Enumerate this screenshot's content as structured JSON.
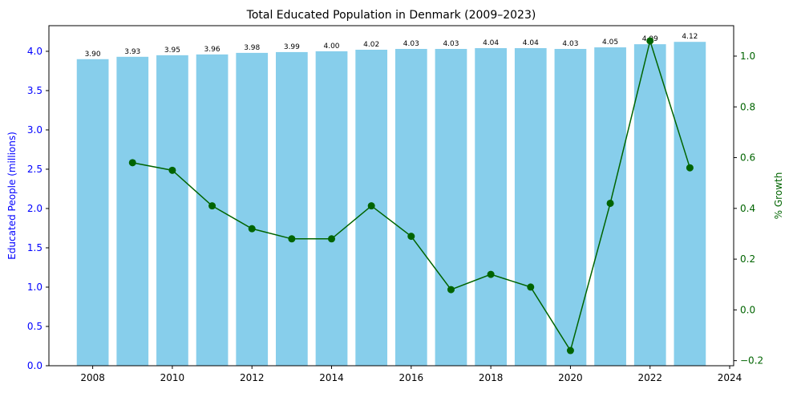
{
  "chart_data": {
    "type": "bar",
    "title": "Total Educated Population in Denmark (2009–2023)",
    "x": [
      2008,
      2009,
      2010,
      2011,
      2012,
      2013,
      2014,
      2015,
      2016,
      2017,
      2018,
      2019,
      2020,
      2021,
      2022,
      2023
    ],
    "series": [
      {
        "name": "Educated People (millions)",
        "type": "bar",
        "axis": "left",
        "color": "#87ceeb",
        "values": [
          3.9,
          3.93,
          3.95,
          3.96,
          3.98,
          3.99,
          4.0,
          4.02,
          4.03,
          4.03,
          4.04,
          4.04,
          4.03,
          4.05,
          4.09,
          4.12
        ],
        "labels": [
          "3.90",
          "3.93",
          "3.95",
          "3.96",
          "3.98",
          "3.99",
          "4.00",
          "4.02",
          "4.03",
          "4.03",
          "4.04",
          "4.04",
          "4.03",
          "4.05",
          "4.09",
          "4.12"
        ]
      },
      {
        "name": "% Growth",
        "type": "line",
        "axis": "right",
        "color": "#006400",
        "values": [
          null,
          0.58,
          0.55,
          0.41,
          0.32,
          0.28,
          0.28,
          0.41,
          0.29,
          0.08,
          0.14,
          0.09,
          -0.16,
          0.42,
          1.06,
          0.56
        ]
      }
    ],
    "xlim": [
      2006.9,
      2024.1
    ],
    "ylim_left": [
      0,
      4.326
    ],
    "ylim_right": [
      -0.22,
      1.12
    ],
    "xticks": [
      "2008",
      "2010",
      "2012",
      "2014",
      "2016",
      "2018",
      "2020",
      "2022",
      "2024"
    ],
    "yticks_left": [
      "0.0",
      "0.5",
      "1.0",
      "1.5",
      "2.0",
      "2.5",
      "3.0",
      "3.5",
      "4.0"
    ],
    "yticks_right": [
      "−0.2",
      "0.0",
      "0.2",
      "0.4",
      "0.6",
      "0.8",
      "1.0"
    ],
    "ylabel_left": "Educated People (millions)",
    "ylabel_right": "% Growth",
    "left_axis_color": "#0000ff",
    "right_axis_color": "#006400",
    "grid": false
  }
}
